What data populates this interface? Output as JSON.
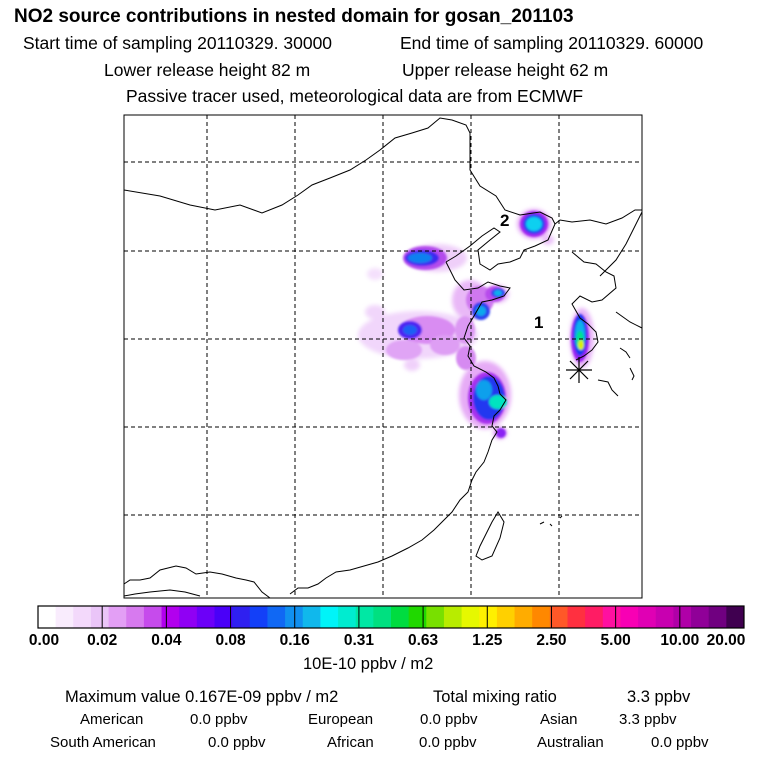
{
  "title": "NO2 source contributions in nested domain for gosan_201103",
  "header": {
    "start_time": "Start time of sampling 20110329. 30000",
    "end_time": "End time of sampling 20110329. 60000",
    "lower_release": "Lower release height   82 m",
    "upper_release": "Upper release height   62 m",
    "tracer_note": "Passive tracer used, meteorological data are from ECMWF"
  },
  "map": {
    "labels": {
      "source_1": "1",
      "source_2": "2"
    },
    "receptor_marker": "asterisk-icon"
  },
  "colorbar": {
    "unit": "10E-10 ppbv / m2",
    "tick_labels": [
      "0.00",
      "0.02",
      "0.04",
      "0.08",
      "0.16",
      "0.31",
      "0.63",
      "1.25",
      "2.50",
      "5.00",
      "10.00",
      "20.00"
    ],
    "colors": [
      "#ffffff",
      "#f9ecfd",
      "#f3d9fb",
      "#eac5f8",
      "#e39ff5",
      "#d77aef",
      "#c64bec",
      "#b200ee",
      "#9000f4",
      "#6c00f8",
      "#4a00f8",
      "#2f20f0",
      "#1340f8",
      "#1068f4",
      "#1090f0",
      "#10b8ec",
      "#00f4f8",
      "#00ecd0",
      "#00e8a4",
      "#00e080",
      "#00dc40",
      "#20d800",
      "#78e000",
      "#b8ec00",
      "#e6f800",
      "#fff000",
      "#ffd000",
      "#ffac00",
      "#ff8800",
      "#ff5828",
      "#ff3040",
      "#ff1c64",
      "#ff10a0",
      "#f800b4",
      "#e000b4",
      "#c800b0",
      "#b000a8",
      "#900098",
      "#700080",
      "#400050"
    ]
  },
  "stats": {
    "max_label": "Maximum value  0.167E-09 ppbv / m2",
    "total_label": "Total mixing ratio",
    "total_value": "3.3 ppbv",
    "regions": [
      {
        "name": "American",
        "value": "0.0 ppbv"
      },
      {
        "name": "European",
        "value": "0.0 ppbv"
      },
      {
        "name": "Asian",
        "value": "3.3 ppbv"
      },
      {
        "name": "South American",
        "value": "0.0 ppbv"
      },
      {
        "name": "African",
        "value": "0.0 ppbv"
      },
      {
        "name": "Australian",
        "value": "0.0 ppbv"
      }
    ]
  }
}
